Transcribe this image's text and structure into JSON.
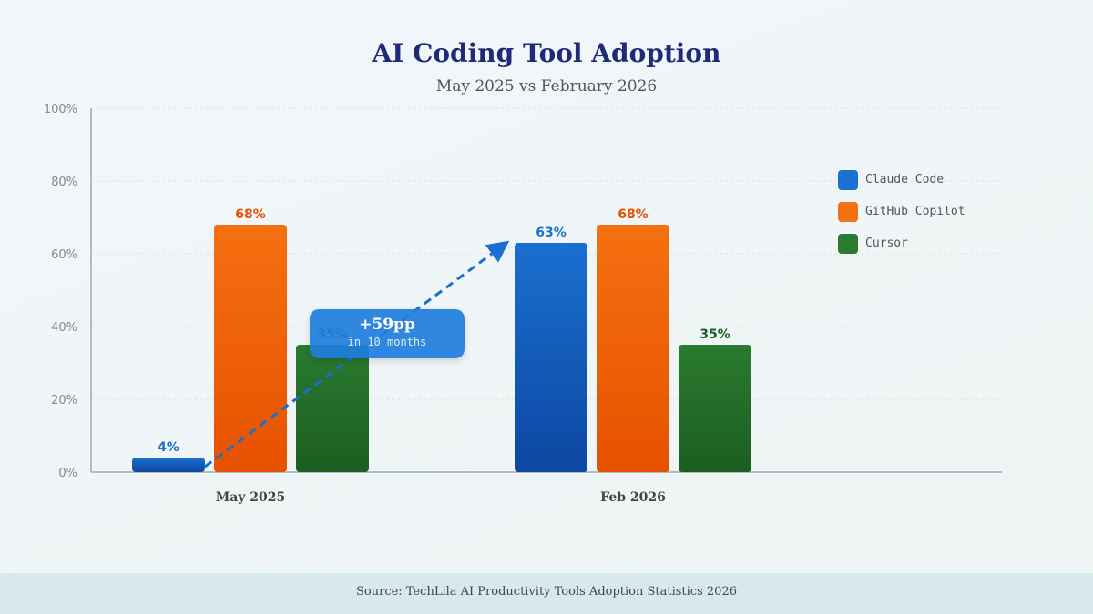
{
  "chart_data": {
    "type": "bar",
    "title": "AI Coding Tool Adoption",
    "subtitle": "May 2025 vs February 2026",
    "categories": [
      "May 2025",
      "Feb 2026"
    ],
    "series": [
      {
        "name": "Claude Code",
        "values": [
          4,
          63
        ],
        "color": "#1a6fd0"
      },
      {
        "name": "GitHub Copilot",
        "values": [
          68,
          68
        ],
        "color": "#f57010"
      },
      {
        "name": "Cursor",
        "values": [
          35,
          35
        ],
        "color": "#2a7a30"
      }
    ],
    "data_labels": [
      [
        "4%",
        "68%",
        "35%"
      ],
      [
        "63%",
        "68%",
        "35%"
      ]
    ],
    "ylim": [
      0,
      100
    ],
    "yticks": [
      "0%",
      "20%",
      "40%",
      "60%",
      "80%",
      "100%"
    ],
    "legend": "right",
    "grid": true,
    "annotation": {
      "value": "+59pp",
      "text": "in 10 months"
    },
    "source": "Source: TechLila AI Productivity Tools Adoption Statistics 2026"
  }
}
